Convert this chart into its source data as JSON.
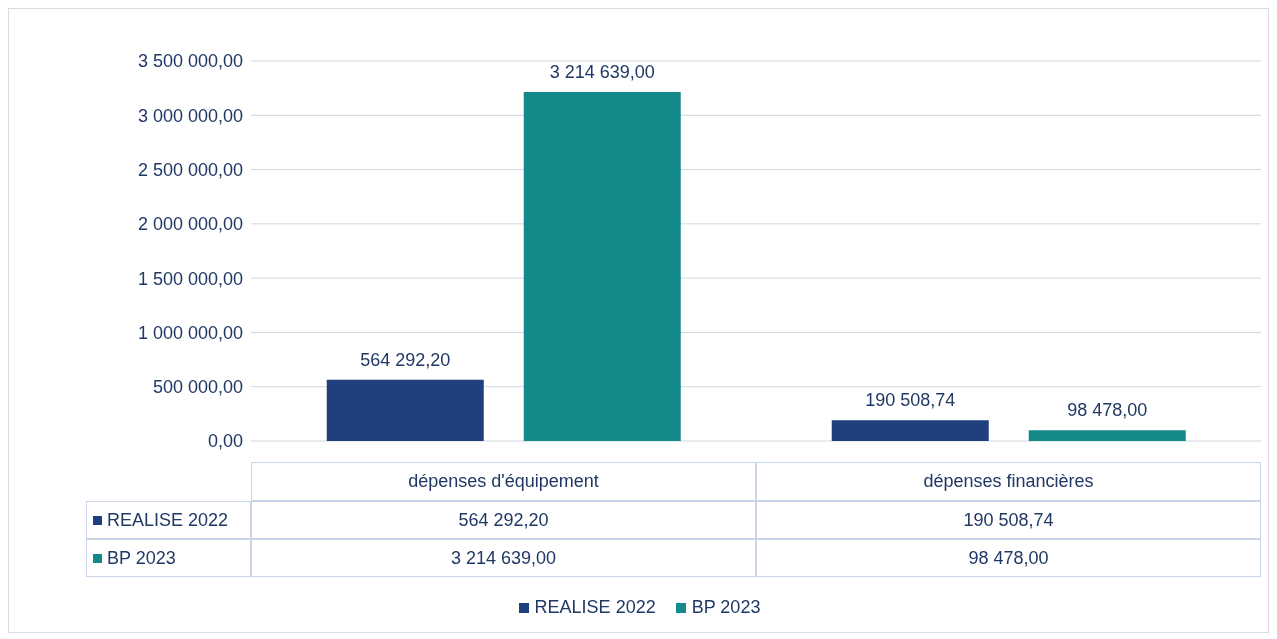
{
  "chart_data": {
    "type": "bar",
    "categories": [
      "dépenses d'équipement",
      "dépenses financières"
    ],
    "series": [
      {
        "name": "REALISE 2022",
        "color": "#1f3f7e",
        "values": [
          564292.2,
          190508.74
        ],
        "value_labels": [
          "564 292,20",
          "190 508,74"
        ]
      },
      {
        "name": "BP 2023",
        "color": "#13898a",
        "values": [
          3214639,
          98478
        ],
        "value_labels": [
          "3 214 639,00",
          "98 478,00"
        ]
      }
    ],
    "ylim": [
      0,
      3500000
    ],
    "yticks": [
      {
        "value": 0,
        "label": "0,00"
      },
      {
        "value": 500000,
        "label": "500 000,00"
      },
      {
        "value": 1000000,
        "label": "1 000 000,00"
      },
      {
        "value": 1500000,
        "label": "1 500 000,00"
      },
      {
        "value": 2000000,
        "label": "2 000 000,00"
      },
      {
        "value": 2500000,
        "label": "2 500 000,00"
      },
      {
        "value": 3000000,
        "label": "3 000 000,00"
      },
      {
        "value": 3500000,
        "label": "3 500 000,00"
      }
    ],
    "grid": "y",
    "legend": "bottom"
  }
}
